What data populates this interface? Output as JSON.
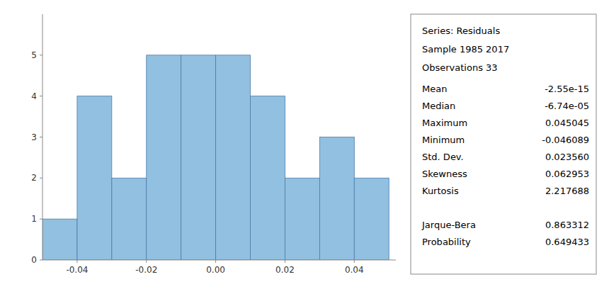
{
  "chart_data": {
    "type": "histogram",
    "bins": [
      -0.05,
      -0.04,
      -0.03,
      -0.02,
      -0.01,
      0.0,
      0.01,
      0.02,
      0.03,
      0.04,
      0.05
    ],
    "values": [
      1,
      4,
      2,
      5,
      5,
      5,
      4,
      2,
      3,
      2
    ],
    "color": "#92c0e0",
    "xlim": [
      -0.05,
      0.052
    ],
    "xticks": [
      -0.04,
      -0.02,
      {
        "value": 0,
        "label": "0.00"
      },
      0.02,
      0.04
    ],
    "ylim": [
      0,
      6
    ],
    "yticks": [
      0,
      1,
      2,
      3,
      4,
      5
    ],
    "grid": false,
    "annotations": [
      "Series: Residuals",
      "Sample 1985 2017",
      "Observations 33",
      [
        "Mean",
        "-2.55e-15"
      ],
      [
        "Median",
        "-6.74e-05"
      ],
      [
        "Maximum",
        "0.045045"
      ],
      [
        "Minimum",
        "-0.046089"
      ],
      [
        "Std. Dev.",
        "0.023560"
      ],
      [
        "Skewness",
        "0.062953"
      ],
      [
        "Kurtosis",
        "2.217688"
      ],
      [
        "Jarque-Bera",
        "0.863312"
      ],
      [
        "Probability",
        "0.649433"
      ]
    ]
  }
}
